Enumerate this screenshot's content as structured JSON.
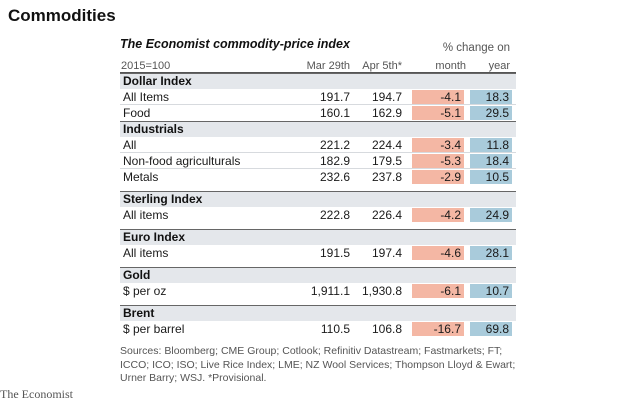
{
  "page_title": "Commodities",
  "table": {
    "title": "The Economist commodity-price index",
    "base": "2015=100",
    "change_header": "% change on",
    "columns": {
      "date1": "Mar 29th",
      "date2": "Apr 5th*",
      "month": "month",
      "year": "year"
    },
    "sections": [
      {
        "title": "Dollar Index",
        "rows": [
          {
            "label": "All Items",
            "v1": "191.7",
            "v2": "194.7",
            "month": "-4.1",
            "year": "18.3"
          },
          {
            "label": "Food",
            "v1": "160.1",
            "v2": "162.9",
            "month": "-5.1",
            "year": "29.5"
          }
        ]
      },
      {
        "title": "Industrials",
        "rows": [
          {
            "label": "All",
            "v1": "221.2",
            "v2": "224.4",
            "month": "-3.4",
            "year": "11.8"
          },
          {
            "label": "Non-food agriculturals",
            "v1": "182.9",
            "v2": "179.5",
            "month": "-5.3",
            "year": "18.4"
          },
          {
            "label": "Metals",
            "v1": "232.6",
            "v2": "237.8",
            "month": "-2.9",
            "year": "10.5"
          }
        ]
      },
      {
        "title": "Sterling Index",
        "rows": [
          {
            "label": "All items",
            "v1": "222.8",
            "v2": "226.4",
            "month": "-4.2",
            "year": "24.9"
          }
        ]
      },
      {
        "title": "Euro Index",
        "rows": [
          {
            "label": "All items",
            "v1": "191.5",
            "v2": "197.4",
            "month": "-4.6",
            "year": "28.1"
          }
        ]
      },
      {
        "title": "Gold",
        "rows": [
          {
            "label": "$ per oz",
            "v1": "1,911.1",
            "v2": "1,930.8",
            "month": "-6.1",
            "year": "10.7"
          }
        ]
      },
      {
        "title": "Brent",
        "rows": [
          {
            "label": "$ per barrel",
            "v1": "110.5",
            "v2": "106.8",
            "month": "-16.7",
            "year": "69.8"
          }
        ]
      }
    ]
  },
  "sources": "Sources: Bloomberg; CME Group; Cotlook; Refinitiv Datastream; Fastmarkets; FT; ICCO; ICO; ISO; Live Rice Index; LME; NZ Wool Services; Thompson Lloyd & Ewart; Urner Barry; WSJ. *Provisional.",
  "brand": "The Economist",
  "colors": {
    "month_fill": "#f4b7a4",
    "year_fill": "#a9cbdb",
    "section_fill": "#e4e7eb"
  }
}
